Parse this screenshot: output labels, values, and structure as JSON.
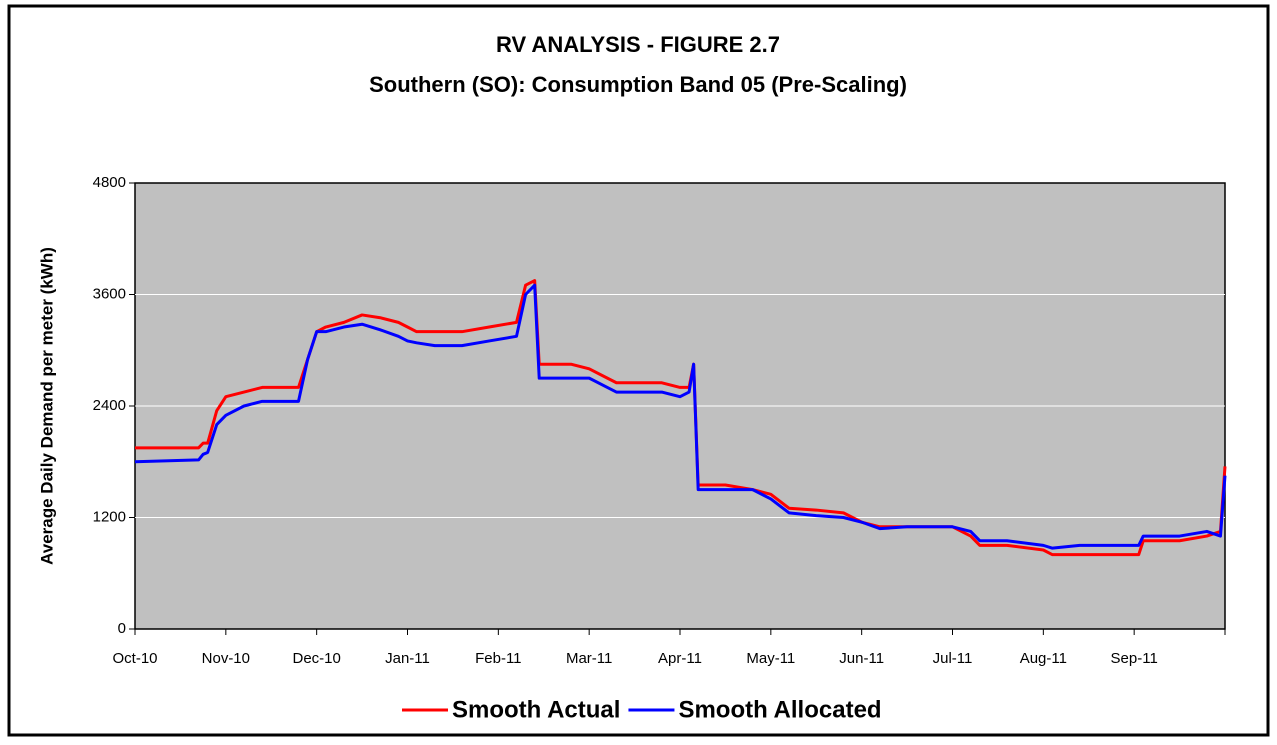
{
  "chart_data": {
    "type": "line",
    "title": "RV ANALYSIS - FIGURE 2.7",
    "subtitle": "Southern (SO): Consumption Band 05 (Pre-Scaling)",
    "y_label": "Average Daily Demand per meter (kWh)",
    "x": [
      0,
      0.7,
      0.75,
      0.8,
      0.9,
      1.0,
      1.2,
      1.4,
      1.8,
      1.9,
      2.0,
      2.1,
      2.3,
      2.5,
      2.7,
      2.9,
      3.0,
      3.1,
      3.3,
      3.6,
      3.9,
      4.2,
      4.3,
      4.4,
      4.45,
      4.8,
      5.0,
      5.2,
      5.3,
      5.8,
      6.0,
      6.1,
      6.15,
      6.2,
      6.5,
      6.8,
      7.0,
      7.2,
      7.5,
      7.8,
      8.0,
      8.2,
      8.5,
      9.0,
      9.2,
      9.3,
      9.6,
      10.0,
      10.1,
      10.4,
      11.0,
      11.05,
      11.1,
      11.5,
      11.8,
      11.95,
      12.0
    ],
    "series": [
      {
        "name": "Smooth Actual",
        "color": "#ff0000",
        "values": [
          1950,
          1950,
          2000,
          2000,
          2350,
          2500,
          2550,
          2600,
          2600,
          2900,
          3200,
          3250,
          3300,
          3380,
          3350,
          3300,
          3250,
          3200,
          3200,
          3200,
          3250,
          3300,
          3700,
          3750,
          2850,
          2850,
          2800,
          2700,
          2650,
          2650,
          2600,
          2600,
          2850,
          1550,
          1550,
          1500,
          1450,
          1300,
          1280,
          1250,
          1150,
          1100,
          1100,
          1100,
          1000,
          900,
          900,
          850,
          800,
          800,
          800,
          800,
          950,
          950,
          1000,
          1050,
          1750
        ]
      },
      {
        "name": "Smooth Allocated",
        "color": "#0000ff",
        "values": [
          1800,
          1820,
          1880,
          1900,
          2200,
          2300,
          2400,
          2450,
          2450,
          2900,
          3200,
          3200,
          3250,
          3280,
          3220,
          3150,
          3100,
          3080,
          3050,
          3050,
          3100,
          3150,
          3600,
          3700,
          2700,
          2700,
          2700,
          2600,
          2550,
          2550,
          2500,
          2550,
          2850,
          1500,
          1500,
          1500,
          1400,
          1250,
          1220,
          1200,
          1150,
          1080,
          1100,
          1100,
          1050,
          950,
          950,
          900,
          870,
          900,
          900,
          900,
          1000,
          1000,
          1050,
          1000,
          1650
        ]
      }
    ],
    "xlim": [
      0,
      12
    ],
    "xticks": [
      {
        "value": 0,
        "label": "Oct-10"
      },
      {
        "value": 1,
        "label": "Nov-10"
      },
      {
        "value": 2,
        "label": "Dec-10"
      },
      {
        "value": 3,
        "label": "Jan-11"
      },
      {
        "value": 4,
        "label": "Feb-11"
      },
      {
        "value": 5,
        "label": "Mar-11"
      },
      {
        "value": 6,
        "label": "Apr-11"
      },
      {
        "value": 7,
        "label": "May-11"
      },
      {
        "value": 8,
        "label": "Jun-11"
      },
      {
        "value": 9,
        "label": "Jul-11"
      },
      {
        "value": 10,
        "label": "Aug-11"
      },
      {
        "value": 11,
        "label": "Sep-11"
      }
    ],
    "ylim": [
      0,
      4800
    ],
    "yticks": [
      0,
      1200,
      2400,
      3600,
      4800
    ],
    "grid": true,
    "legend": "bottom"
  }
}
